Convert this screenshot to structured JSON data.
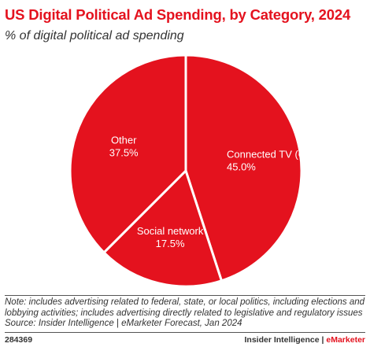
{
  "title": "US Digital Political Ad Spending, by Category, 2024",
  "subtitle": "% of digital political ad spending",
  "chart_data": {
    "type": "pie",
    "title": "US Digital Political Ad Spending, by Category, 2024",
    "subtitle": "% of digital political ad spending",
    "categories": [
      "Connected TV (CTV)",
      "Social network",
      "Other"
    ],
    "values": [
      45.0,
      17.5,
      37.5
    ],
    "value_labels": [
      "45.0%",
      "17.5%",
      "37.5%"
    ],
    "start": "12 o'clock",
    "direction": "clockwise",
    "colors": {
      "fill": "#e4121e",
      "border": "#ffffff"
    }
  },
  "note_lines": [
    "Note: includes advertising related to federal, state, or local politics, including elections and",
    "lobbying activities; includes advertising directly related to legislative and regulatory issues",
    "Source: Insider Intelligence | eMarketer Forecast, Jan 2024"
  ],
  "footer": {
    "id": "284369",
    "brand_main": "Insider Intelligence | ",
    "brand_accent": "eMarketer"
  }
}
